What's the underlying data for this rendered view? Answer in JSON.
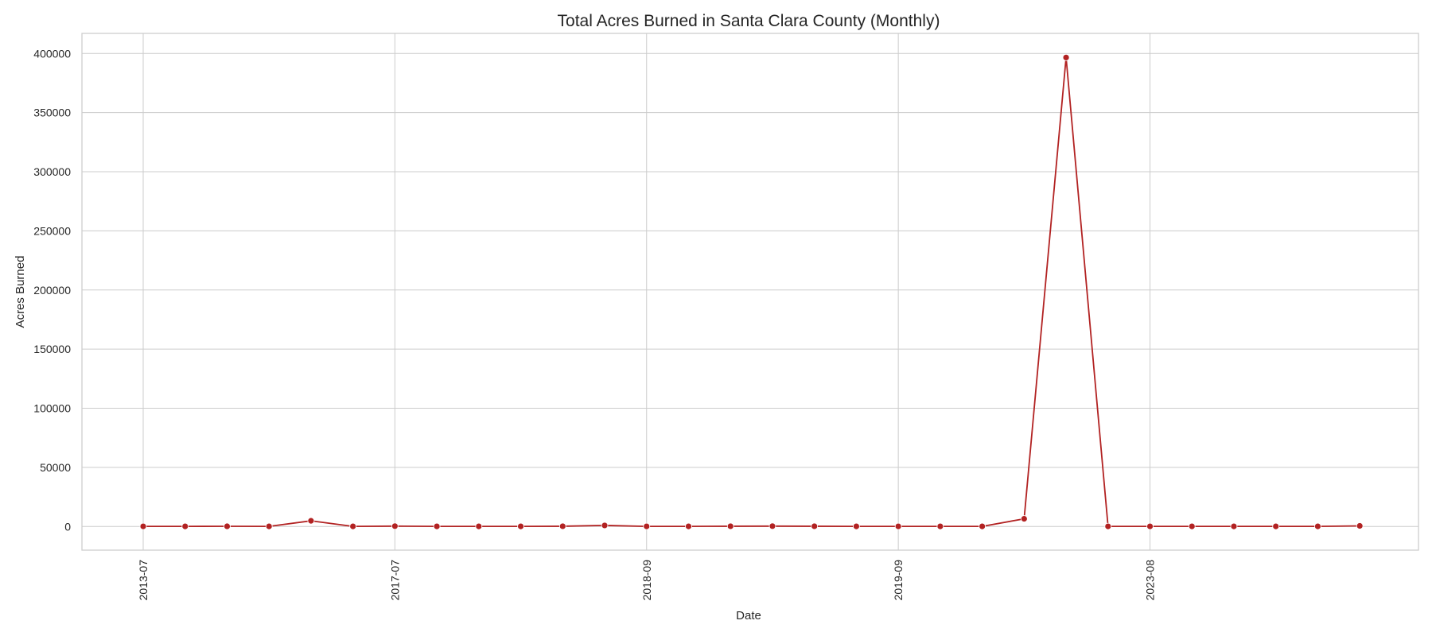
{
  "chart_data": {
    "type": "line",
    "title": "Total Acres Burned in Santa Clara County (Monthly)",
    "xlabel": "Date",
    "ylabel": "Acres Burned",
    "x_tick_labels": [
      "2013-07",
      "2017-07",
      "2018-09",
      "2019-09",
      "2023-08"
    ],
    "x_tick_positions": [
      0,
      6,
      12,
      18,
      24
    ],
    "y_ticks": [
      0,
      50000,
      100000,
      150000,
      200000,
      250000,
      300000,
      350000,
      400000
    ],
    "ylim": [
      -20000,
      417000
    ],
    "grid": true,
    "line_color": "#b22222",
    "series": [
      {
        "values": [
          100,
          100,
          150,
          100,
          4800,
          100,
          300,
          100,
          100,
          100,
          200,
          900,
          100,
          100,
          200,
          300,
          200,
          100,
          100,
          100,
          100,
          6500,
          396600,
          100,
          100,
          100,
          100,
          100,
          100,
          500
        ]
      }
    ]
  }
}
